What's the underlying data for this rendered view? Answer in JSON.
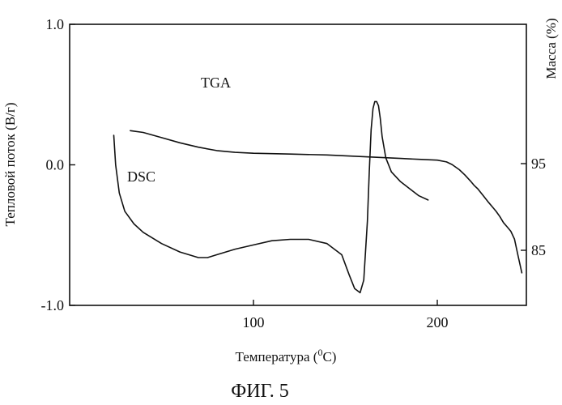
{
  "chart_data": {
    "type": "line",
    "xlabel": "Температура (",
    "xlabel_sup": "0",
    "xlabel_unit": "C)",
    "ylabel_left": "Тепловой поток (В/г)",
    "ylabel_right": "Масса (%)",
    "xlim": [
      0,
      250
    ],
    "ylim_left": [
      -1.0,
      1.0
    ],
    "ylim_right": [
      80,
      110
    ],
    "x_ticks": [
      {
        "value": 100,
        "label": "100"
      },
      {
        "value": 200,
        "label": "200"
      }
    ],
    "y_left_ticks": [
      {
        "value": 1.0,
        "label": "1.0"
      },
      {
        "value": 0.0,
        "label": "0.0"
      },
      {
        "value": -1.0,
        "label": "-1.0"
      }
    ],
    "y_right_ticks": [
      {
        "value": 95,
        "label": "95"
      },
      {
        "value": 85,
        "label": "85"
      }
    ],
    "series": [
      {
        "name": "DSC",
        "axis": "left",
        "x": [
          24,
          25,
          27,
          30,
          35,
          40,
          50,
          60,
          70,
          75,
          80,
          90,
          100,
          110,
          120,
          130,
          140,
          148,
          152,
          155,
          158,
          160,
          162,
          163,
          164,
          165,
          166,
          167,
          168,
          169,
          170,
          172,
          175,
          180,
          185,
          190,
          195
        ],
        "y": [
          0.21,
          0.0,
          -0.2,
          -0.33,
          -0.42,
          -0.48,
          -0.56,
          -0.62,
          -0.66,
          -0.66,
          -0.64,
          -0.6,
          -0.57,
          -0.54,
          -0.53,
          -0.53,
          -0.56,
          -0.64,
          -0.78,
          -0.88,
          -0.91,
          -0.82,
          -0.4,
          -0.05,
          0.25,
          0.4,
          0.45,
          0.45,
          0.42,
          0.33,
          0.2,
          0.05,
          -0.05,
          -0.12,
          -0.17,
          -0.22,
          -0.25
        ]
      },
      {
        "name": "TGA",
        "axis": "right",
        "x": [
          33,
          40,
          50,
          60,
          70,
          80,
          90,
          100,
          120,
          140,
          160,
          180,
          190,
          200,
          205,
          208,
          212,
          215,
          218,
          220,
          222,
          225,
          228,
          230,
          232,
          234,
          236,
          238,
          240,
          242,
          244,
          246
        ],
        "y": [
          98.8,
          98.6,
          98.0,
          97.4,
          96.9,
          96.5,
          96.3,
          96.2,
          96.1,
          96.0,
          95.8,
          95.6,
          95.5,
          95.4,
          95.2,
          94.9,
          94.3,
          93.7,
          93.0,
          92.5,
          92.1,
          91.3,
          90.5,
          90.0,
          89.5,
          88.9,
          88.2,
          87.7,
          87.2,
          86.3,
          84.3,
          82.4
        ]
      }
    ]
  },
  "figure_label": "ФИГ. 5"
}
